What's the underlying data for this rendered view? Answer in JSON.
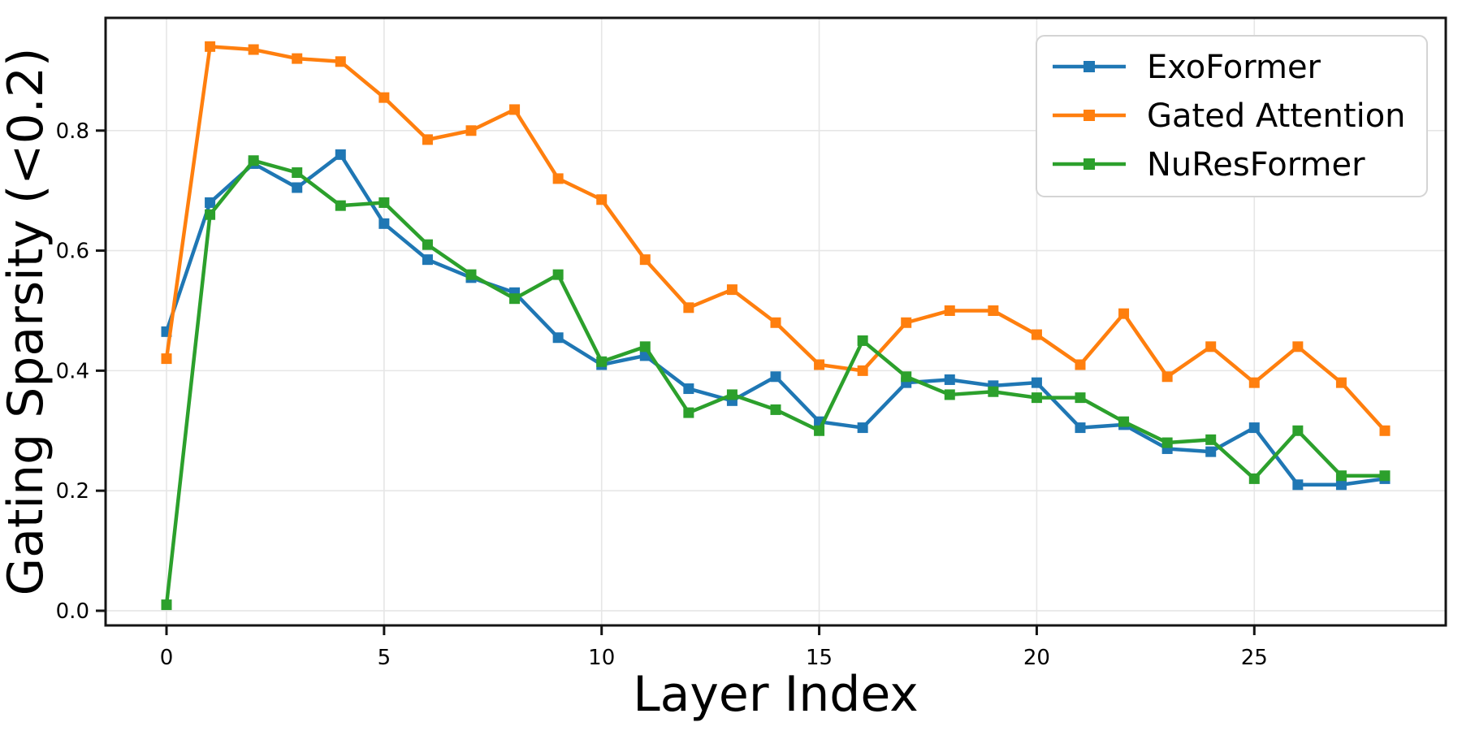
{
  "chart_data": {
    "type": "line",
    "title": "",
    "xlabel": "Layer Index",
    "ylabel": "Gating Sparsity (<0.2)",
    "marker": "square",
    "grid": true,
    "legend_position": "upper right",
    "x": [
      0,
      1,
      2,
      3,
      4,
      5,
      6,
      7,
      8,
      9,
      10,
      11,
      12,
      13,
      14,
      15,
      16,
      17,
      18,
      19,
      20,
      21,
      22,
      23,
      24,
      25,
      26,
      27,
      28
    ],
    "xticks": [
      0,
      5,
      10,
      15,
      20,
      25
    ],
    "xtick_labels": [
      "0",
      "5",
      "10",
      "15",
      "20",
      "25"
    ],
    "ytick_values": [
      0.0,
      0.2,
      0.4,
      0.6,
      0.8
    ],
    "ytick_labels": [
      "0.0",
      "0.2",
      "0.4",
      "0.6",
      "0.8"
    ],
    "xlim": [
      -1.4,
      29.4
    ],
    "ylim": [
      -0.0244,
      0.9878
    ],
    "series": [
      {
        "name": "ExoFormer",
        "color": "#1f77b4",
        "values": [
          0.465,
          0.68,
          0.745,
          0.705,
          0.76,
          0.645,
          0.585,
          0.555,
          0.53,
          0.455,
          0.41,
          0.425,
          0.37,
          0.35,
          0.39,
          0.315,
          0.305,
          0.38,
          0.385,
          0.375,
          0.38,
          0.305,
          0.31,
          0.27,
          0.265,
          0.305,
          0.21,
          0.21,
          0.22
        ]
      },
      {
        "name": "Gated Attention",
        "color": "#ff7f0e",
        "values": [
          0.42,
          0.94,
          0.935,
          0.92,
          0.915,
          0.855,
          0.785,
          0.8,
          0.835,
          0.72,
          0.685,
          0.585,
          0.505,
          0.535,
          0.48,
          0.41,
          0.4,
          0.48,
          0.5,
          0.5,
          0.46,
          0.41,
          0.495,
          0.39,
          0.44,
          0.38,
          0.44,
          0.38,
          0.3
        ]
      },
      {
        "name": "NuResFormer",
        "color": "#2ca02c",
        "values": [
          0.01,
          0.66,
          0.75,
          0.73,
          0.675,
          0.68,
          0.61,
          0.56,
          0.52,
          0.56,
          0.415,
          0.44,
          0.33,
          0.36,
          0.335,
          0.3,
          0.45,
          0.39,
          0.36,
          0.365,
          0.355,
          0.355,
          0.315,
          0.28,
          0.285,
          0.22,
          0.3,
          0.225,
          0.225
        ]
      }
    ],
    "colors": {
      "background": "#ffffff",
      "grid": "#e6e6e6",
      "axis": "#141414",
      "legend_border": "#d4d4d4",
      "legend_background": "#ffffff",
      "text": "#000000"
    }
  }
}
